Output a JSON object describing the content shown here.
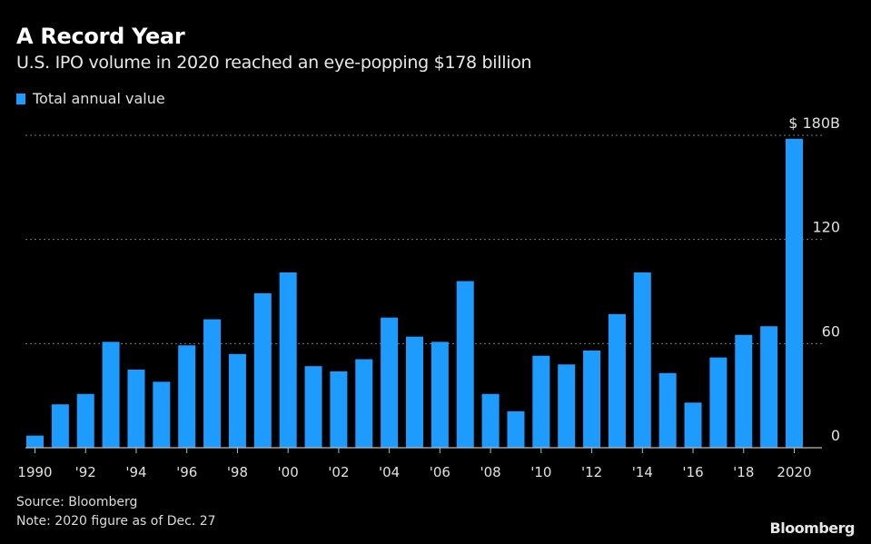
{
  "header": {
    "title": "A Record Year",
    "subtitle": "U.S. IPO volume in 2020 reached an eye-popping $178 billion"
  },
  "footer": {
    "source": "Source: Bloomberg",
    "note": "Note: 2020 figure as of Dec. 27",
    "brand": "Bloomberg"
  },
  "colors": {
    "bar": "#1e9bff",
    "background": "#000000",
    "grid": "#777777",
    "axis": "#bbbbbb"
  },
  "chart_data": {
    "type": "bar",
    "title": "A Record Year",
    "subtitle": "U.S. IPO volume in 2020 reached an eye-popping $178 billion",
    "xlabel": "",
    "ylabel": "",
    "ylim": [
      0,
      180
    ],
    "grid": true,
    "legend": {
      "position": "top-left",
      "entries": [
        "Total annual value"
      ]
    },
    "yticks": [
      0,
      60,
      120,
      180
    ],
    "ytick_labels": [
      "0",
      "60",
      "120",
      "$ 180B"
    ],
    "categories": [
      "1990",
      "1991",
      "1992",
      "1993",
      "1994",
      "1995",
      "1996",
      "1997",
      "1998",
      "1999",
      "2000",
      "2001",
      "2002",
      "2003",
      "2004",
      "2005",
      "2006",
      "2007",
      "2008",
      "2009",
      "2010",
      "2011",
      "2012",
      "2013",
      "2014",
      "2015",
      "2016",
      "2017",
      "2018",
      "2019",
      "2020"
    ],
    "xtick_labels": [
      "1990",
      "'92",
      "'94",
      "'96",
      "'98",
      "'00",
      "'02",
      "'04",
      "'06",
      "'08",
      "'10",
      "'12",
      "'14",
      "'16",
      "'18",
      "2020"
    ],
    "xtick_categories": [
      "1990",
      "1992",
      "1994",
      "1996",
      "1998",
      "2000",
      "2002",
      "2004",
      "2006",
      "2008",
      "2010",
      "2012",
      "2014",
      "2016",
      "2018",
      "2020"
    ],
    "series": [
      {
        "name": "Total annual value",
        "values": [
          7,
          25,
          31,
          61,
          45,
          38,
          59,
          74,
          54,
          89,
          101,
          47,
          44,
          51,
          75,
          64,
          61,
          96,
          31,
          21,
          53,
          48,
          56,
          77,
          101,
          43,
          26,
          52,
          65,
          70,
          178
        ]
      }
    ]
  }
}
